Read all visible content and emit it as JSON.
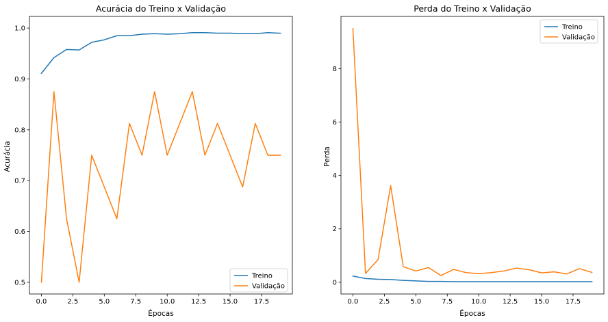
{
  "chart_data": [
    {
      "type": "line",
      "title": "Acurácia do Treino x Validação",
      "xlabel": "Épocas",
      "ylabel": "Acurácia",
      "xlim": [
        -0.95,
        19.95
      ],
      "ylim": [
        0.477,
        1.023
      ],
      "xticks": [
        0,
        2.5,
        5,
        7.5,
        10,
        12.5,
        15,
        17.5
      ],
      "xtick_labels": [
        "0.0",
        "2.5",
        "5.0",
        "7.5",
        "10.0",
        "12.5",
        "15.0",
        "17.5"
      ],
      "yticks": [
        0.5,
        0.6,
        0.7,
        0.8,
        0.9,
        1.0
      ],
      "ytick_labels": [
        "0.5",
        "0.6",
        "0.7",
        "0.8",
        "0.9",
        "1.0"
      ],
      "legend_position": "lower right",
      "x": [
        0,
        1,
        2,
        3,
        4,
        5,
        6,
        7,
        8,
        9,
        10,
        11,
        12,
        13,
        14,
        15,
        16,
        17,
        18,
        19
      ],
      "series": [
        {
          "name": "Treino",
          "color": "#1f77b4",
          "values": [
            0.911,
            0.942,
            0.958,
            0.957,
            0.972,
            0.977,
            0.985,
            0.985,
            0.988,
            0.989,
            0.988,
            0.989,
            0.991,
            0.991,
            0.99,
            0.99,
            0.989,
            0.989,
            0.991,
            0.99
          ]
        },
        {
          "name": "Validação",
          "color": "#ff7f0e",
          "values": [
            0.5,
            0.875,
            0.625,
            0.5,
            0.75,
            0.6875,
            0.625,
            0.8125,
            0.75,
            0.875,
            0.75,
            0.8125,
            0.875,
            0.75,
            0.8125,
            0.75,
            0.6875,
            0.8125,
            0.75,
            0.75
          ]
        }
      ]
    },
    {
      "type": "line",
      "title": "Perda do Treino x Validação",
      "xlabel": "Épocas",
      "ylabel": "Perda",
      "xlim": [
        -0.95,
        19.95
      ],
      "ylim": [
        -0.44,
        9.96
      ],
      "xticks": [
        0,
        2.5,
        5,
        7.5,
        10,
        12.5,
        15,
        17.5
      ],
      "xtick_labels": [
        "0.0",
        "2.5",
        "5.0",
        "7.5",
        "10.0",
        "12.5",
        "15.0",
        "17.5"
      ],
      "yticks": [
        0,
        2,
        4,
        6,
        8
      ],
      "ytick_labels": [
        "0",
        "2",
        "4",
        "6",
        "8"
      ],
      "legend_position": "upper right",
      "x": [
        0,
        1,
        2,
        3,
        4,
        5,
        6,
        7,
        8,
        9,
        10,
        11,
        12,
        13,
        14,
        15,
        16,
        17,
        18,
        19
      ],
      "series": [
        {
          "name": "Treino",
          "color": "#1f77b4",
          "values": [
            0.23,
            0.14,
            0.11,
            0.1,
            0.07,
            0.05,
            0.03,
            0.03,
            0.02,
            0.02,
            0.02,
            0.02,
            0.02,
            0.02,
            0.02,
            0.02,
            0.02,
            0.02,
            0.02,
            0.02
          ]
        },
        {
          "name": "Validação",
          "color": "#ff7f0e",
          "values": [
            9.5,
            0.33,
            0.85,
            3.62,
            0.58,
            0.42,
            0.55,
            0.25,
            0.48,
            0.36,
            0.32,
            0.36,
            0.42,
            0.53,
            0.47,
            0.35,
            0.39,
            0.31,
            0.51,
            0.37
          ]
        }
      ]
    }
  ]
}
